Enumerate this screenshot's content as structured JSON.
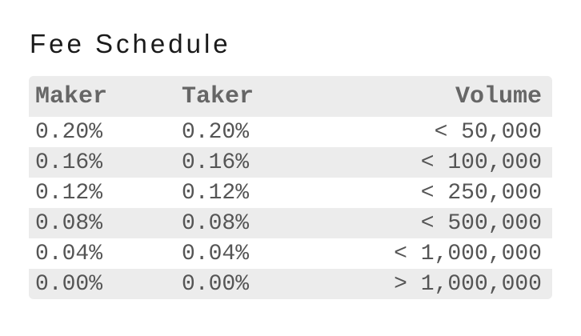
{
  "title": "Fee Schedule",
  "colors": {
    "row_alt": "#ececec",
    "header_text": "#666666",
    "cell_text": "#555555",
    "title_text": "#1a1a1a",
    "bg": "#ffffff"
  },
  "table": {
    "columns": {
      "maker": "Maker",
      "taker": "Taker",
      "volume": "Volume"
    },
    "rows": [
      {
        "maker": "0.20%",
        "taker": "0.20%",
        "volume": "< 50,000"
      },
      {
        "maker": "0.16%",
        "taker": "0.16%",
        "volume": "< 100,000"
      },
      {
        "maker": "0.12%",
        "taker": "0.12%",
        "volume": "< 250,000"
      },
      {
        "maker": "0.08%",
        "taker": "0.08%",
        "volume": "< 500,000"
      },
      {
        "maker": "0.04%",
        "taker": "0.04%",
        "volume": "< 1,000,000"
      },
      {
        "maker": "0.00%",
        "taker": "0.00%",
        "volume": "> 1,000,000"
      }
    ]
  }
}
